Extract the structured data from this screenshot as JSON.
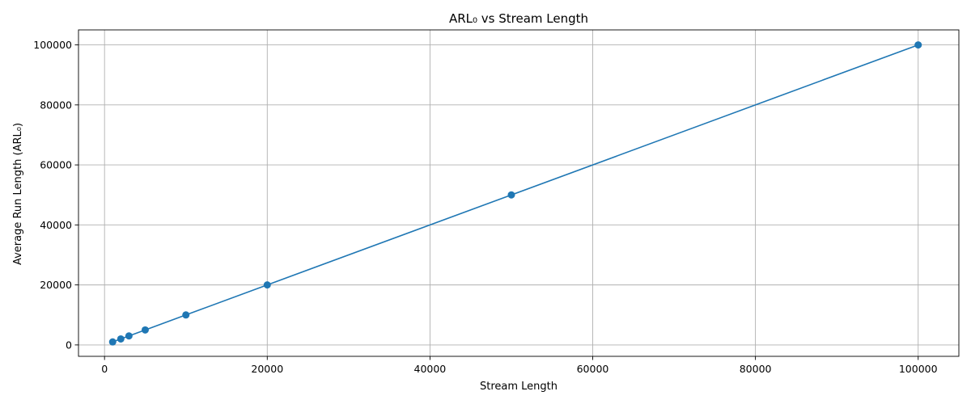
{
  "chart_data": {
    "type": "line",
    "title": "ARL₀ vs Stream Length",
    "xlabel": "Stream Length",
    "ylabel": "Average Run Length (ARL₀)",
    "xlim": [
      -3200,
      105000
    ],
    "ylim": [
      -3800,
      105000
    ],
    "xticks": [
      0,
      20000,
      40000,
      60000,
      80000,
      100000
    ],
    "yticks": [
      0,
      20000,
      40000,
      60000,
      80000,
      100000
    ],
    "grid": true,
    "color": "#1f77b4",
    "marker": "circle",
    "series": [
      {
        "x": [
          1000,
          2000,
          3000,
          5000,
          10000,
          20000,
          50000,
          100000
        ],
        "y": [
          1000,
          2000,
          3000,
          5000,
          10000,
          20000,
          50000,
          100000
        ]
      }
    ]
  }
}
